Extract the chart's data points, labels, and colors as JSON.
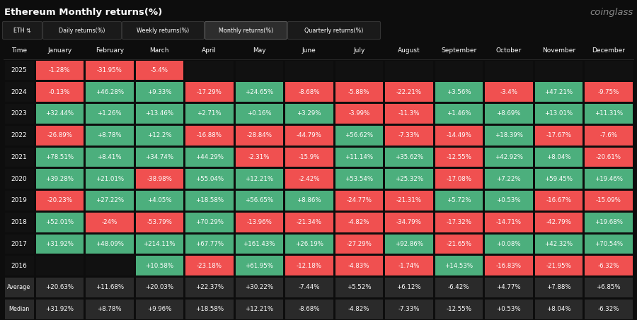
{
  "title": "Ethereum Monthly returns(%)",
  "brand": "coinglass",
  "tabs": [
    "ETH ⇅",
    "Daily returns(%)",
    "Weekly returns(%)",
    "Monthly returns(%)",
    "Quarterly returns(%)"
  ],
  "active_tab": "Monthly returns(%)",
  "columns": [
    "Time",
    "January",
    "February",
    "March",
    "April",
    "May",
    "June",
    "July",
    "August",
    "September",
    "October",
    "November",
    "December"
  ],
  "rows": [
    {
      "year": "2025",
      "values": [
        "-1.28%",
        "-31.95%",
        "-5.4%",
        "",
        "",
        "",
        "",
        "",
        "",
        "",
        "",
        ""
      ]
    },
    {
      "year": "2024",
      "values": [
        "-0.13%",
        "+46.28%",
        "+9.33%",
        "-17.29%",
        "+24.65%",
        "-8.68%",
        "-5.88%",
        "-22.21%",
        "+3.56%",
        "-3.4%",
        "+47.21%",
        "-9.75%"
      ]
    },
    {
      "year": "2023",
      "values": [
        "+32.44%",
        "+1.26%",
        "+13.46%",
        "+2.71%",
        "+0.16%",
        "+3.29%",
        "-3.99%",
        "-11.3%",
        "+1.46%",
        "+8.69%",
        "+13.01%",
        "+11.31%"
      ]
    },
    {
      "year": "2022",
      "values": [
        "-26.89%",
        "+8.78%",
        "+12.2%",
        "-16.88%",
        "-28.84%",
        "-44.79%",
        "+56.62%",
        "-7.33%",
        "-14.49%",
        "+18.39%",
        "-17.67%",
        "-7.6%"
      ]
    },
    {
      "year": "2021",
      "values": [
        "+78.51%",
        "+8.41%",
        "+34.74%",
        "+44.29%",
        "-2.31%",
        "-15.9%",
        "+11.14%",
        "+35.62%",
        "-12.55%",
        "+42.92%",
        "+8.04%",
        "-20.61%"
      ]
    },
    {
      "year": "2020",
      "values": [
        "+39.28%",
        "+21.01%",
        "-38.98%",
        "+55.04%",
        "+12.21%",
        "-2.42%",
        "+53.54%",
        "+25.32%",
        "-17.08%",
        "+7.22%",
        "+59.45%",
        "+19.46%"
      ]
    },
    {
      "year": "2019",
      "values": [
        "-20.23%",
        "+27.22%",
        "+4.05%",
        "+18.58%",
        "+56.65%",
        "+8.86%",
        "-24.77%",
        "-21.31%",
        "+5.72%",
        "+0.53%",
        "-16.67%",
        "-15.09%"
      ]
    },
    {
      "year": "2018",
      "values": [
        "+52.01%",
        "-24%",
        "-53.79%",
        "+70.29%",
        "-13.96%",
        "-21.34%",
        "-4.82%",
        "-34.79%",
        "-17.32%",
        "-14.71%",
        "-42.79%",
        "+19.68%"
      ]
    },
    {
      "year": "2017",
      "values": [
        "+31.92%",
        "+48.09%",
        "+214.11%",
        "+67.77%",
        "+161.43%",
        "+26.19%",
        "-27.29%",
        "+92.86%",
        "-21.65%",
        "+0.08%",
        "+42.32%",
        "+70.54%"
      ]
    },
    {
      "year": "2016",
      "values": [
        "",
        "",
        "+10.58%",
        "-23.18%",
        "+61.95%",
        "-12.18%",
        "-4.83%",
        "-1.74%",
        "+14.53%",
        "-16.83%",
        "-21.95%",
        "-6.32%"
      ]
    }
  ],
  "average": [
    "+20.63%",
    "+11.68%",
    "+20.03%",
    "+22.37%",
    "+30.22%",
    "-7.44%",
    "+5.52%",
    "+6.12%",
    "-6.42%",
    "+4.77%",
    "+7.88%",
    "+6.85%"
  ],
  "median": [
    "+31.92%",
    "+8.78%",
    "+9.96%",
    "+18.58%",
    "+12.21%",
    "-8.68%",
    "-4.82%",
    "-7.33%",
    "-12.55%",
    "+0.53%",
    "+8.04%",
    "-6.32%"
  ],
  "bg_color": "#0d0d0d",
  "cell_green": "#4caf7d",
  "cell_red": "#f05050",
  "cell_empty_bg": "#111111",
  "avg_med_bg": "#2a2a2a",
  "text_color": "#ffffff",
  "tab_active_bg": "#2d2d2d",
  "tab_inactive_bg": "#1a1a1a",
  "tab_border_active": "#555555",
  "tab_border_inactive": "#333333"
}
